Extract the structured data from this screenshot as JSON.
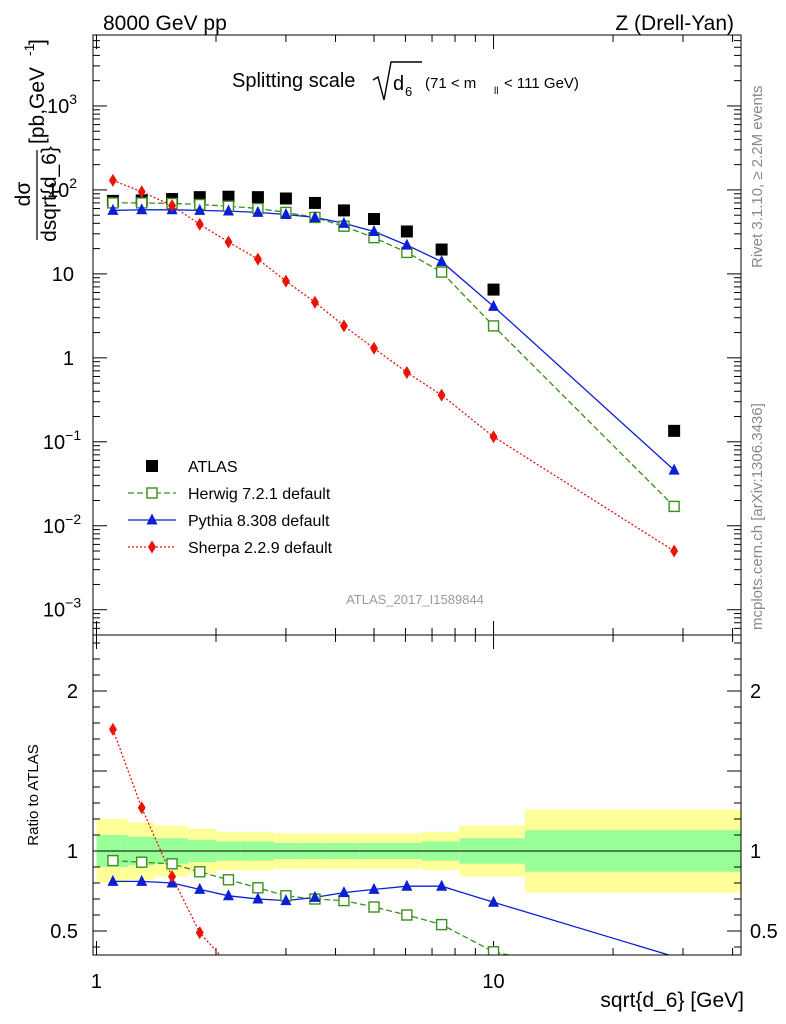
{
  "header": {
    "left": "8000 GeV pp",
    "right": "Z (Drell-Yan)"
  },
  "plot_title": {
    "prefix": "Splitting scale",
    "var": "d",
    "sub": "6",
    "cut_open": "(71 < m",
    "cut_sub": "ll",
    "cut_close": " < 111 GeV)"
  },
  "side_labels": {
    "rivet": "Rivet 3.1.10, ≥ 2.2M events",
    "mcplots": "mcplots.cern.ch [arXiv:1306.3436]"
  },
  "watermark": "ATLAS_2017_I1589844",
  "colors": {
    "atlas": "#000000",
    "herwig": "#3a8f1c",
    "pythia": "#0a1fd6",
    "sherpa": "#e8140a",
    "band_inner": "#99ff99",
    "band_outer": "#ffff99"
  },
  "chart_data": [
    {
      "type": "line",
      "panel": "main",
      "title": "Splitting scale √d6 (71 < m_ll < 111 GeV)",
      "xlabel": "sqrt{d_6} [GeV]",
      "ylabel": "dσ/dsqrt{d_6} [pb,GeV⁻¹]",
      "ylabel_parts": {
        "num": "dσ",
        "den": "dsqrt{d_6}",
        "unit": "[pb,GeV",
        "exp": "-1",
        "close": "]"
      },
      "x_scale": "log",
      "y_scale": "log",
      "xlim": [
        0.98,
        42
      ],
      "ylim": [
        0.0005,
        7000
      ],
      "y_ticks": [
        {
          "value": 1000,
          "base": "10",
          "exp": "3"
        },
        {
          "value": 100,
          "base": "10",
          "exp": "2"
        },
        {
          "value": 10,
          "base": "10",
          "exp": ""
        },
        {
          "value": 1,
          "base": "1",
          "exp": ""
        },
        {
          "value": 0.1,
          "base": "10",
          "exp": "−1"
        },
        {
          "value": 0.01,
          "base": "10",
          "exp": "−2"
        },
        {
          "value": 0.001,
          "base": "10",
          "exp": "−3"
        }
      ],
      "legend_position": "lower-left",
      "series": [
        {
          "name": "ATLAS",
          "key": "atlas",
          "marker": "square",
          "line": "none",
          "x": [
            1.1,
            1.3,
            1.55,
            1.82,
            2.15,
            2.55,
            3.0,
            3.55,
            4.2,
            5.0,
            6.05,
            7.4,
            10.0,
            28.5
          ],
          "y": [
            74,
            75,
            78,
            82,
            83,
            82,
            79,
            70,
            57,
            45,
            32,
            19.5,
            6.5,
            0.135
          ]
        },
        {
          "name": "Herwig 7.2.1 default",
          "key": "herwig",
          "marker": "open-square",
          "line": "dashed",
          "x": [
            1.1,
            1.3,
            1.55,
            1.82,
            2.15,
            2.55,
            3.0,
            3.55,
            4.2,
            5.0,
            6.05,
            7.4,
            10.0,
            28.5
          ],
          "y": [
            70,
            70,
            69,
            67,
            64,
            60,
            54,
            47,
            37,
            27,
            18,
            10.5,
            2.4,
            0.017
          ]
        },
        {
          "name": "Pythia 8.308 default",
          "key": "pythia",
          "marker": "triangle",
          "line": "solid",
          "x": [
            1.1,
            1.3,
            1.55,
            1.82,
            2.15,
            2.55,
            3.0,
            3.55,
            4.2,
            5.0,
            6.05,
            7.4,
            10.0,
            28.5
          ],
          "y": [
            57,
            58,
            58,
            57,
            56,
            54,
            51,
            47,
            40,
            32,
            22,
            14,
            4.1,
            0.046
          ]
        },
        {
          "name": "Sherpa 2.2.9 default",
          "key": "sherpa",
          "marker": "diamond",
          "line": "dotted",
          "x": [
            1.1,
            1.3,
            1.55,
            1.82,
            2.15,
            2.55,
            3.0,
            3.55,
            4.2,
            5.0,
            6.05,
            7.4,
            10.0,
            28.5
          ],
          "y": [
            130,
            95,
            65,
            39,
            24,
            15,
            8.2,
            4.6,
            2.4,
            1.3,
            0.67,
            0.36,
            0.115,
            0.005
          ]
        }
      ]
    },
    {
      "type": "line",
      "panel": "ratio",
      "xlabel": "sqrt{d_6} [GeV]",
      "ylabel": "Ratio to ATLAS",
      "x_scale": "log",
      "xlim": [
        0.98,
        42
      ],
      "ylim": [
        0.35,
        2.35
      ],
      "y_ticks": [
        {
          "value": 2,
          "label": "2"
        },
        {
          "value": 1,
          "label": "1"
        },
        {
          "value": 0.5,
          "label": "0.5"
        }
      ],
      "x_ticks": [
        {
          "value": 1,
          "label": "1"
        },
        {
          "value": 10,
          "label": "10"
        }
      ],
      "bins": [
        1.0,
        1.2,
        1.4,
        1.7,
        2.0,
        2.3,
        2.8,
        3.3,
        3.8,
        4.6,
        5.5,
        6.6,
        8.2,
        12.0,
        45.0
      ],
      "band_inner": [
        0.1,
        0.09,
        0.08,
        0.07,
        0.06,
        0.06,
        0.05,
        0.05,
        0.05,
        0.05,
        0.05,
        0.06,
        0.08,
        0.13
      ],
      "band_outer": [
        0.2,
        0.18,
        0.16,
        0.14,
        0.12,
        0.12,
        0.11,
        0.11,
        0.11,
        0.11,
        0.11,
        0.12,
        0.16,
        0.26
      ],
      "series": [
        {
          "name": "Herwig 7.2.1 default",
          "key": "herwig",
          "marker": "open-square",
          "line": "dashed",
          "x": [
            1.1,
            1.3,
            1.55,
            1.82,
            2.15,
            2.55,
            3.0,
            3.55,
            4.2,
            5.0,
            6.05,
            7.4,
            10.0,
            28.5
          ],
          "y": [
            0.94,
            0.93,
            0.92,
            0.87,
            0.82,
            0.77,
            0.72,
            0.7,
            0.69,
            0.65,
            0.6,
            0.54,
            0.37,
            0.126
          ]
        },
        {
          "name": "Pythia 8.308 default",
          "key": "pythia",
          "marker": "triangle",
          "line": "solid",
          "x": [
            1.1,
            1.3,
            1.55,
            1.82,
            2.15,
            2.55,
            3.0,
            3.55,
            4.2,
            5.0,
            6.05,
            7.4,
            10.0,
            28.5
          ],
          "y": [
            0.81,
            0.81,
            0.8,
            0.76,
            0.72,
            0.7,
            0.69,
            0.71,
            0.74,
            0.76,
            0.78,
            0.78,
            0.68,
            0.34
          ]
        },
        {
          "name": "Sherpa 2.2.9 default",
          "key": "sherpa",
          "marker": "diamond",
          "line": "dotted",
          "x": [
            1.1,
            1.3,
            1.55,
            1.82,
            2.15
          ],
          "y": [
            1.76,
            1.27,
            0.84,
            0.49,
            0.29
          ]
        }
      ]
    }
  ]
}
